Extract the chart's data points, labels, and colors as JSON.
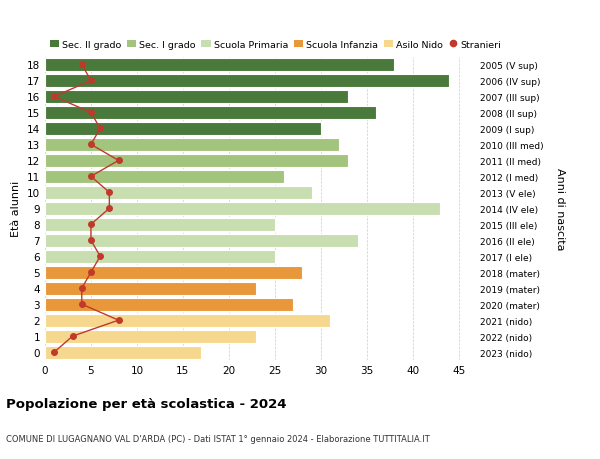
{
  "ages": [
    0,
    1,
    2,
    3,
    4,
    5,
    6,
    7,
    8,
    9,
    10,
    11,
    12,
    13,
    14,
    15,
    16,
    17,
    18
  ],
  "bar_values": [
    17,
    23,
    31,
    27,
    23,
    28,
    25,
    34,
    25,
    43,
    29,
    26,
    33,
    32,
    30,
    36,
    33,
    44,
    38
  ],
  "bar_colors": [
    "#f5d78e",
    "#f5d78e",
    "#f5d78e",
    "#e8973a",
    "#e8973a",
    "#e8973a",
    "#c8ddb0",
    "#c8ddb0",
    "#c8ddb0",
    "#c8ddb0",
    "#c8ddb0",
    "#a3c47c",
    "#a3c47c",
    "#a3c47c",
    "#4a7a3b",
    "#4a7a3b",
    "#4a7a3b",
    "#4a7a3b",
    "#4a7a3b"
  ],
  "stranieri_values": [
    1,
    3,
    8,
    4,
    4,
    5,
    6,
    5,
    5,
    7,
    7,
    5,
    8,
    5,
    6,
    5,
    1,
    5,
    4
  ],
  "right_labels": [
    "2023 (nido)",
    "2022 (nido)",
    "2021 (nido)",
    "2020 (mater)",
    "2019 (mater)",
    "2018 (mater)",
    "2017 (I ele)",
    "2016 (II ele)",
    "2015 (III ele)",
    "2014 (IV ele)",
    "2013 (V ele)",
    "2012 (I med)",
    "2011 (II med)",
    "2010 (III med)",
    "2009 (I sup)",
    "2008 (II sup)",
    "2007 (III sup)",
    "2006 (IV sup)",
    "2005 (V sup)"
  ],
  "color_sec2": "#4a7a3b",
  "color_sec1": "#a3c47c",
  "color_prim": "#c8ddb0",
  "color_infanzia": "#e8973a",
  "color_nido": "#f5d78e",
  "color_stranieri": "#c0392b",
  "xlim": [
    0,
    47
  ],
  "xticks": [
    0,
    5,
    10,
    15,
    20,
    25,
    30,
    35,
    40,
    45
  ],
  "title": "Popolazione per età scolastica - 2024",
  "subtitle": "COMUNE DI LUGAGNANO VAL D'ARDA (PC) - Dati ISTAT 1° gennaio 2024 - Elaborazione TUTTITALIA.IT",
  "ylabel": "Età alunni",
  "right_ylabel": "Anni di nascita",
  "bg_color": "#ffffff",
  "grid_color": "#cccccc"
}
